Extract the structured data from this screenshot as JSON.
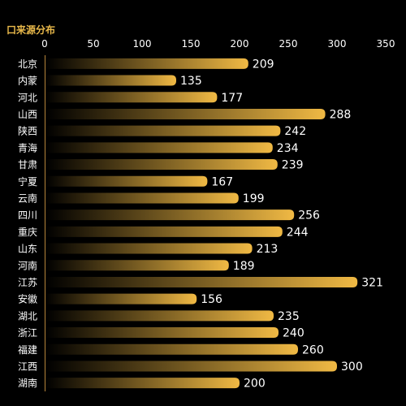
{
  "chart_data": {
    "type": "bar",
    "orientation": "horizontal",
    "title": "口来源分布",
    "xlim": [
      0,
      350
    ],
    "x_ticks": [
      0,
      50,
      100,
      150,
      200,
      250,
      300,
      350
    ],
    "x_axis_position": "top",
    "grid": false,
    "categories": [
      "北京",
      "内蒙",
      "河北",
      "山西",
      "陕西",
      "青海",
      "甘肃",
      "宁夏",
      "云南",
      "四川",
      "重庆",
      "山东",
      "河南",
      "江苏",
      "安徽",
      "湖北",
      "浙江",
      "福建",
      "江西",
      "湖南"
    ],
    "values": [
      209,
      135,
      177,
      288,
      242,
      234,
      239,
      167,
      199,
      256,
      244,
      213,
      189,
      321,
      156,
      235,
      240,
      260,
      300,
      200
    ],
    "data_labels": true,
    "colors": {
      "background": "#000000",
      "bar_start": "#000000",
      "bar_end": "#f0b944",
      "title": "#e8b84a",
      "text": "#ffffff",
      "axis_line": "#b8863b"
    }
  }
}
